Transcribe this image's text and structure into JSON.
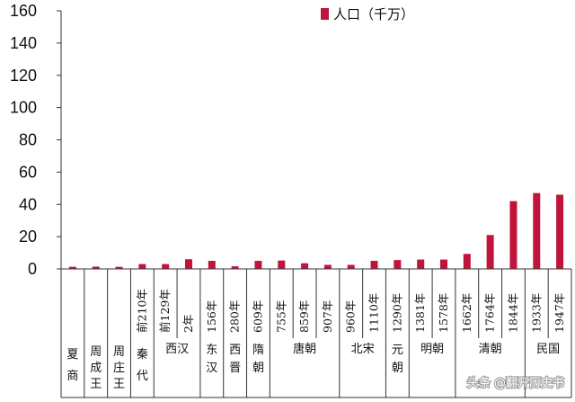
{
  "chart_data": {
    "type": "bar",
    "title": "",
    "xlabel": "",
    "ylabel": "",
    "ylim": [
      0,
      160
    ],
    "yticks": [
      "0",
      "20",
      "40",
      "60",
      "80",
      "100",
      "120",
      "140",
      "160"
    ],
    "categories": [
      "",
      "",
      "",
      "前210年",
      "前129年",
      "2年",
      "156年",
      "280年",
      "609年",
      "755年",
      "859年",
      "907年",
      "960年",
      "1110年",
      "1290年",
      "1381年",
      "1578年",
      "1662年",
      "1764年",
      "1844年",
      "1933年",
      "1947年"
    ],
    "series": [
      {
        "name": "人口（千万）",
        "color": "#c0143c",
        "values": [
          1.3,
          1.4,
          1.3,
          3.0,
          3.0,
          6.0,
          5.0,
          1.6,
          5.0,
          5.2,
          3.5,
          2.5,
          2.5,
          5.0,
          5.5,
          5.8,
          5.8,
          9.3,
          21.0,
          42.0,
          47.0,
          46.0
        ]
      }
    ],
    "dynasties": [
      {
        "label": "夏商",
        "span": [
          0,
          0
        ]
      },
      {
        "label": "周成王",
        "span": [
          1,
          1
        ]
      },
      {
        "label": "周庄王",
        "span": [
          2,
          2
        ]
      },
      {
        "label": "秦代",
        "span": [
          3,
          3
        ]
      },
      {
        "label": "西汉",
        "span": [
          4,
          5
        ]
      },
      {
        "label": "东汉",
        "span": [
          6,
          6
        ]
      },
      {
        "label": "西晋",
        "span": [
          7,
          7
        ]
      },
      {
        "label": "隋朝",
        "span": [
          8,
          8
        ]
      },
      {
        "label": "唐朝",
        "span": [
          9,
          11
        ]
      },
      {
        "label": "北宋",
        "span": [
          12,
          13
        ]
      },
      {
        "label": "元朝",
        "span": [
          14,
          14
        ]
      },
      {
        "label": "明朝",
        "span": [
          15,
          16
        ]
      },
      {
        "label": "清朝",
        "span": [
          17,
          19
        ]
      },
      {
        "label": "民国",
        "span": [
          20,
          21
        ]
      }
    ],
    "legend": {
      "label": "人口（千万）",
      "position": "top-right"
    }
  },
  "watermark": "头条 @翻开历史书"
}
